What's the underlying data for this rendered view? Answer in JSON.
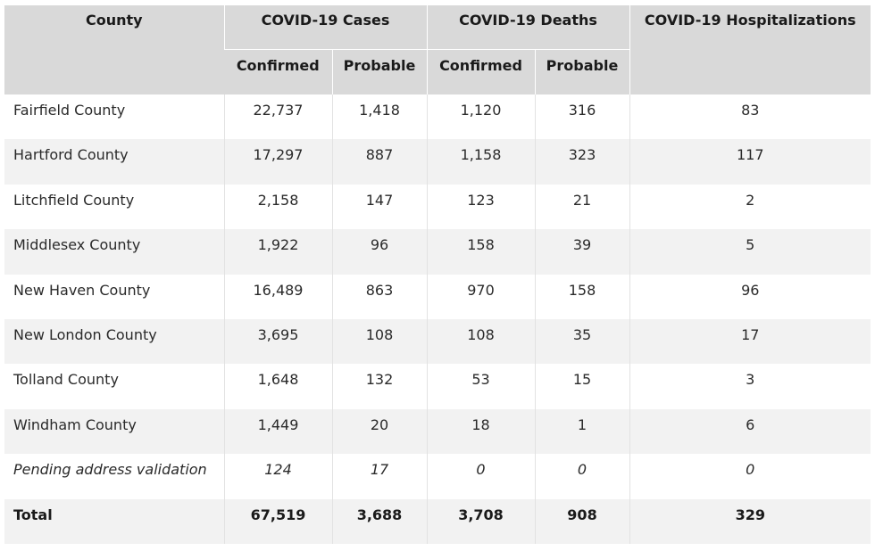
{
  "headers": {
    "county": "County",
    "cases": "COVID-19 Cases",
    "deaths": "COVID-19 Deaths",
    "hospitalizations": "COVID-19 Hospitalizations",
    "confirmed": "Confirmed",
    "probable": "Probable"
  },
  "rows": [
    {
      "county": "Fairfield County",
      "cases_confirmed": "22,737",
      "cases_probable": "1,418",
      "deaths_confirmed": "1,120",
      "deaths_probable": "316",
      "hospitalizations": "83"
    },
    {
      "county": "Hartford County",
      "cases_confirmed": "17,297",
      "cases_probable": "887",
      "deaths_confirmed": "1,158",
      "deaths_probable": "323",
      "hospitalizations": "117"
    },
    {
      "county": "Litchfield County",
      "cases_confirmed": "2,158",
      "cases_probable": "147",
      "deaths_confirmed": "123",
      "deaths_probable": "21",
      "hospitalizations": "2"
    },
    {
      "county": "Middlesex County",
      "cases_confirmed": "1,922",
      "cases_probable": "96",
      "deaths_confirmed": "158",
      "deaths_probable": "39",
      "hospitalizations": "5"
    },
    {
      "county": "New Haven County",
      "cases_confirmed": "16,489",
      "cases_probable": "863",
      "deaths_confirmed": "970",
      "deaths_probable": "158",
      "hospitalizations": "96"
    },
    {
      "county": "New London County",
      "cases_confirmed": "3,695",
      "cases_probable": "108",
      "deaths_confirmed": "108",
      "deaths_probable": "35",
      "hospitalizations": "17"
    },
    {
      "county": "Tolland County",
      "cases_confirmed": "1,648",
      "cases_probable": "132",
      "deaths_confirmed": "53",
      "deaths_probable": "15",
      "hospitalizations": "3"
    },
    {
      "county": "Windham County",
      "cases_confirmed": "1,449",
      "cases_probable": "20",
      "deaths_confirmed": "18",
      "deaths_probable": "1",
      "hospitalizations": "6"
    },
    {
      "county": "Pending address validation",
      "cases_confirmed": "124",
      "cases_probable": "17",
      "deaths_confirmed": "0",
      "deaths_probable": "0",
      "hospitalizations": "0"
    }
  ],
  "total": {
    "county": "Total",
    "cases_confirmed": "67,519",
    "cases_probable": "3,688",
    "deaths_confirmed": "3,708",
    "deaths_probable": "908",
    "hospitalizations": "329"
  }
}
